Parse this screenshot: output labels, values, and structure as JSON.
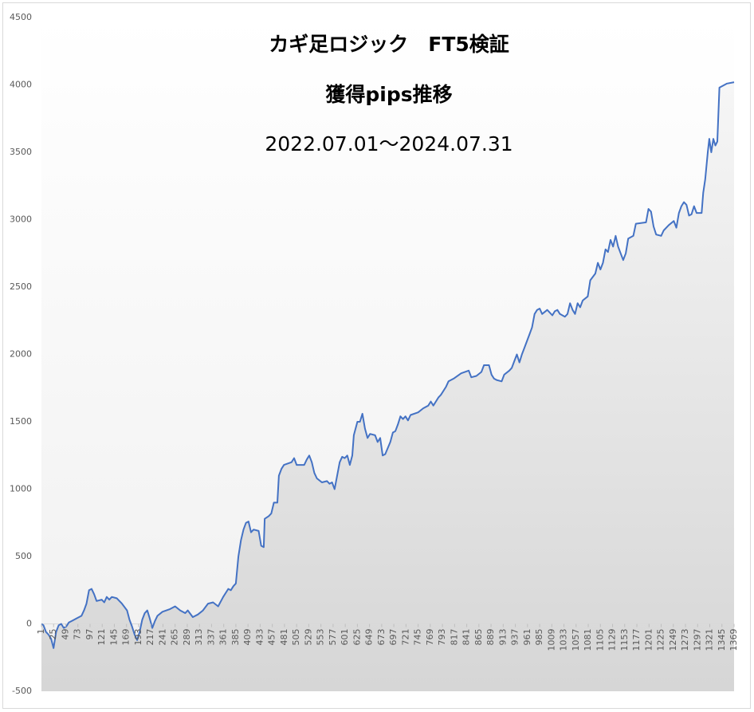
{
  "chart_data": {
    "type": "area",
    "title": "カギ足ロジック　FT5検証",
    "subtitle": "獲得pips推移",
    "annotation": "2022.07.01～2024.07.31",
    "color": "#4472c4",
    "x": [
      1,
      5,
      10,
      15,
      20,
      25,
      30,
      35,
      40,
      45,
      50,
      55,
      60,
      70,
      80,
      85,
      90,
      95,
      100,
      105,
      110,
      120,
      125,
      130,
      135,
      140,
      150,
      160,
      170,
      175,
      180,
      185,
      190,
      195,
      200,
      205,
      210,
      215,
      220,
      225,
      230,
      240,
      255,
      265,
      275,
      285,
      290,
      300,
      310,
      320,
      330,
      340,
      350,
      360,
      370,
      375,
      380,
      385,
      390,
      395,
      400,
      405,
      410,
      415,
      420,
      430,
      435,
      440,
      442,
      450,
      455,
      460,
      467,
      470,
      475,
      480,
      495,
      500,
      505,
      520,
      525,
      530,
      535,
      540,
      545,
      555,
      565,
      570,
      575,
      580,
      585,
      590,
      595,
      600,
      605,
      610,
      615,
      618,
      625,
      630,
      635,
      640,
      645,
      650,
      660,
      665,
      670,
      675,
      680,
      690,
      695,
      700,
      705,
      710,
      715,
      720,
      725,
      730,
      745,
      755,
      765,
      770,
      775,
      785,
      790,
      800,
      805,
      815,
      830,
      845,
      850,
      860,
      870,
      875,
      885,
      890,
      895,
      900,
      910,
      915,
      925,
      930,
      935,
      940,
      945,
      950,
      955,
      960,
      965,
      970,
      975,
      980,
      985,
      990,
      1000,
      1010,
      1015,
      1020,
      1025,
      1035,
      1040,
      1045,
      1050,
      1055,
      1060,
      1065,
      1070,
      1080,
      1085,
      1095,
      1100,
      1105,
      1110,
      1115,
      1120,
      1125,
      1130,
      1135,
      1140,
      1145,
      1150,
      1155,
      1160,
      1170,
      1175,
      1195,
      1200,
      1205,
      1210,
      1215,
      1225,
      1230,
      1240,
      1250,
      1255,
      1260,
      1265,
      1270,
      1275,
      1280,
      1285,
      1290,
      1295,
      1305,
      1308,
      1312,
      1317,
      1320,
      1324,
      1328,
      1332,
      1336,
      1340,
      1350,
      1355,
      1369
    ],
    "values": [
      0,
      -10,
      -60,
      -80,
      -110,
      -180,
      -60,
      -10,
      0,
      -30,
      -20,
      10,
      20,
      40,
      60,
      100,
      150,
      250,
      260,
      220,
      170,
      180,
      160,
      200,
      180,
      200,
      190,
      150,
      100,
      30,
      -20,
      -80,
      -120,
      -60,
      30,
      80,
      100,
      40,
      -30,
      20,
      60,
      90,
      110,
      130,
      100,
      80,
      100,
      50,
      70,
      100,
      150,
      160,
      130,
      200,
      260,
      250,
      280,
      300,
      500,
      620,
      700,
      750,
      760,
      680,
      700,
      690,
      580,
      570,
      780,
      800,
      820,
      900,
      900,
      1100,
      1150,
      1180,
      1200,
      1230,
      1180,
      1180,
      1220,
      1250,
      1200,
      1120,
      1080,
      1050,
      1060,
      1040,
      1050,
      1000,
      1100,
      1200,
      1240,
      1230,
      1250,
      1180,
      1250,
      1400,
      1500,
      1500,
      1560,
      1450,
      1380,
      1410,
      1400,
      1350,
      1380,
      1250,
      1260,
      1350,
      1420,
      1430,
      1480,
      1540,
      1520,
      1540,
      1510,
      1550,
      1570,
      1600,
      1620,
      1650,
      1620,
      1680,
      1700,
      1760,
      1800,
      1820,
      1860,
      1880,
      1830,
      1840,
      1870,
      1920,
      1920,
      1850,
      1820,
      1810,
      1800,
      1850,
      1880,
      1900,
      1950,
      2000,
      1940,
      2000,
      2050,
      2100,
      2150,
      2200,
      2300,
      2330,
      2340,
      2300,
      2330,
      2290,
      2320,
      2330,
      2300,
      2280,
      2300,
      2380,
      2330,
      2300,
      2380,
      2350,
      2400,
      2430,
      2550,
      2600,
      2680,
      2630,
      2680,
      2780,
      2760,
      2850,
      2800,
      2880,
      2800,
      2750,
      2700,
      2750,
      2860,
      2880,
      2970,
      2980,
      3080,
      3060,
      2950,
      2890,
      2880,
      2920,
      2960,
      2990,
      2940,
      3050,
      3100,
      3130,
      3110,
      3030,
      3040,
      3100,
      3050,
      3050,
      3200,
      3300,
      3500,
      3600,
      3500,
      3600,
      3550,
      3580,
      3980,
      4000,
      4010,
      4020
    ],
    "xlim": [
      1,
      1369
    ],
    "xticks": [
      1,
      25,
      49,
      73,
      97,
      121,
      145,
      169,
      193,
      217,
      241,
      265,
      289,
      313,
      337,
      361,
      385,
      409,
      433,
      457,
      481,
      505,
      529,
      553,
      577,
      601,
      625,
      649,
      673,
      697,
      721,
      745,
      769,
      793,
      817,
      841,
      865,
      889,
      913,
      937,
      961,
      985,
      1009,
      1033,
      1057,
      1081,
      1105,
      1129,
      1153,
      1177,
      1201,
      1225,
      1249,
      1273,
      1297,
      1321,
      1345,
      1369
    ],
    "ylim": [
      -500,
      4500
    ],
    "yticks": [
      -500,
      0,
      500,
      1000,
      1500,
      2000,
      2500,
      3000,
      3500,
      4000,
      4500
    ],
    "grid": false
  }
}
